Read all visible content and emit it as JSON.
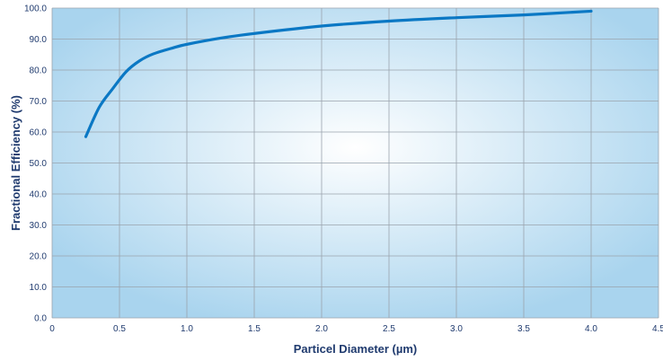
{
  "chart_data": {
    "type": "line",
    "title": "",
    "xlabel": "Particel Diameter (µm)",
    "ylabel": "Fractional Efficiency (%)",
    "xlim": [
      0,
      4.5
    ],
    "ylim": [
      0,
      100
    ],
    "x_ticks": [
      0,
      0.5,
      1.0,
      1.5,
      2.0,
      2.5,
      3.0,
      3.5,
      4.0,
      4.5
    ],
    "x_tick_labels": [
      "0",
      "0.5",
      "1.0",
      "1.5",
      "2.0",
      "2.5",
      "3.0",
      "3.5",
      "4.0",
      "4.5"
    ],
    "y_ticks": [
      0,
      10,
      20,
      30,
      40,
      50,
      60,
      70,
      80,
      90,
      100
    ],
    "y_tick_labels": [
      "0.0",
      "10.0",
      "20.0",
      "30.0",
      "40.0",
      "50.0",
      "60.0",
      "70.0",
      "80.0",
      "90.0",
      "100.0"
    ],
    "grid": true,
    "colors": {
      "line": "#0b78c4",
      "plot_center": "#ffffff",
      "plot_edge": "#a9d4ee",
      "text": "#1f3a6e"
    },
    "series": [
      {
        "x": [
          0.25,
          0.35,
          0.45,
          0.55,
          0.65,
          0.75,
          0.9,
          1.0,
          1.25,
          1.5,
          2.0,
          2.5,
          3.0,
          3.5,
          4.0
        ],
        "y": [
          58.5,
          68.0,
          74.0,
          79.5,
          83.0,
          85.2,
          87.2,
          88.3,
          90.3,
          91.8,
          94.2,
          95.8,
          96.9,
          97.8,
          99.0
        ]
      }
    ]
  }
}
